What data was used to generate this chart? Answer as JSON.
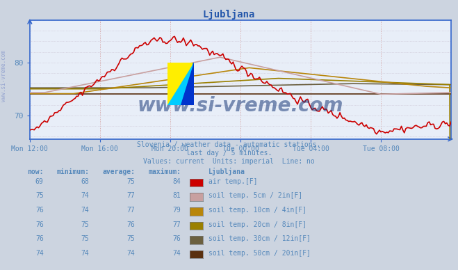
{
  "title": "Ljubljana",
  "background_color": "#ccd4e0",
  "plot_bg_color": "#e8eef8",
  "grid_color_v": "#d4a0a0",
  "grid_color_h": "#c8c0d0",
  "title_color": "#2255aa",
  "axis_color": "#3366cc",
  "text_color": "#5588bb",
  "watermark_text": "www.si-vreme.com",
  "watermark_color": "#1a3a7a",
  "subtitle1": "Slovenia / weather data - automatic stations.",
  "subtitle2": "last day / 5 minutes.",
  "subtitle3": "Values: current  Units: imperial  Line: no",
  "ylabel_text": "www.si-vreme.com",
  "x_tick_labels": [
    "Mon 12:00",
    "Mon 16:00",
    "Mon 20:00",
    "Tue 00:00",
    "Tue 04:00",
    "Tue 08:00"
  ],
  "x_tick_positions": [
    0,
    48,
    96,
    144,
    192,
    240
  ],
  "ylim": [
    65.5,
    88
  ],
  "yticks": [
    70,
    80
  ],
  "xlim": [
    0,
    288
  ],
  "legend_colors": [
    "#cc0000",
    "#c8a0a0",
    "#b8860b",
    "#9a8000",
    "#6b6040",
    "#5a3010"
  ],
  "legend_labels": [
    "air temp.[F]",
    "soil temp. 5cm / 2in[F]",
    "soil temp. 10cm / 4in[F]",
    "soil temp. 20cm / 8in[F]",
    "soil temp. 30cm / 12in[F]",
    "soil temp. 50cm / 20in[F]"
  ],
  "legend_now": [
    69,
    75,
    76,
    76,
    76,
    74
  ],
  "legend_min": [
    68,
    74,
    74,
    75,
    75,
    74
  ],
  "legend_avg": [
    75,
    77,
    77,
    76,
    75,
    74
  ],
  "legend_max": [
    84,
    81,
    79,
    77,
    76,
    74
  ],
  "logo_colors": [
    "#ffee00",
    "#00ddff",
    "#0033cc"
  ]
}
